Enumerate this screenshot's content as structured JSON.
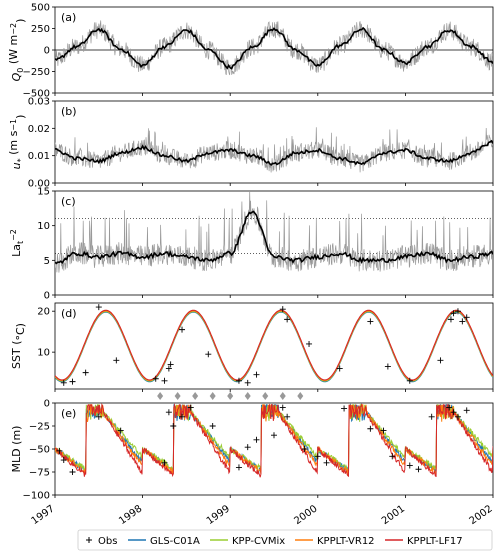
{
  "chart_data": [
    {
      "panel": "(a)",
      "type": "line",
      "ylabel": "Q0 (W m^-2)",
      "ylabel_parts": {
        "sym": "Q",
        "sub": "0",
        "unit": " (W m",
        "sup": "−2",
        "close": ")"
      },
      "ylim": [
        -500,
        500
      ],
      "yticks": [
        "−500",
        "−250",
        "0",
        "250",
        "500"
      ],
      "ytick_values": [
        -500,
        -250,
        0,
        250,
        500
      ],
      "reference_line": 0,
      "series": [
        {
          "name": "",
          "x_years": [
            1997.0,
            1997.25,
            1997.5,
            1997.75,
            1998.0,
            1998.25,
            1998.5,
            1998.75,
            1999.0,
            1999.25,
            1999.5,
            1999.75,
            2000.0,
            2000.25,
            2000.5,
            2000.75,
            2001.0,
            2001.25,
            2001.5,
            2001.75,
            2002.0
          ],
          "values": [
            -120,
            40,
            240,
            10,
            -180,
            40,
            230,
            0,
            -200,
            30,
            250,
            0,
            -180,
            50,
            240,
            0,
            -150,
            40,
            230,
            40,
            -140
          ]
        }
      ],
      "seasonal": {
        "mean": 20,
        "amp": 220,
        "phase_year": 0.5
      }
    },
    {
      "panel": "(b)",
      "type": "line",
      "ylabel": "u* (m s^-1)",
      "ylabel_parts": {
        "sym": "u",
        "sub": "*",
        "unit": " (m s",
        "sup": "−1",
        "close": ")"
      },
      "ylim": [
        0,
        0.03
      ],
      "yticks": [
        "0.00",
        "0.01",
        "0.02",
        "0.03"
      ],
      "ytick_values": [
        0,
        0.01,
        0.02,
        0.03
      ],
      "series": [
        {
          "name": "",
          "x_years": [
            1997.0,
            1997.25,
            1997.5,
            1997.75,
            1998.0,
            1998.25,
            1998.5,
            1998.75,
            1999.0,
            1999.25,
            1999.5,
            1999.75,
            2000.0,
            2000.25,
            2000.5,
            2000.75,
            2001.0,
            2001.25,
            2001.5,
            2001.75,
            2002.0
          ],
          "values": [
            0.012,
            0.009,
            0.008,
            0.011,
            0.013,
            0.01,
            0.008,
            0.011,
            0.012,
            0.01,
            0.007,
            0.011,
            0.012,
            0.009,
            0.007,
            0.011,
            0.012,
            0.009,
            0.008,
            0.011,
            0.015
          ]
        }
      ],
      "seasonal": {
        "mean": 0.0105,
        "amp": 0.0025,
        "phase_year": 0.0
      }
    },
    {
      "panel": "(c)",
      "type": "line",
      "ylabel": "La_t^-2",
      "ylabel_parts": {
        "sym": "La",
        "sub": "t",
        "unit": "",
        "sup": "−2",
        "close": ""
      },
      "ylim": [
        0,
        15
      ],
      "yticks": [
        "0",
        "5",
        "10",
        "15"
      ],
      "ytick_values": [
        0,
        5,
        10,
        15
      ],
      "reference_lines_dotted": [
        11.0,
        6.0
      ],
      "series": [
        {
          "name": "",
          "x_years": [
            1997.0,
            1997.25,
            1997.5,
            1997.75,
            1998.0,
            1998.25,
            1998.5,
            1998.75,
            1999.0,
            1999.25,
            1999.5,
            1999.75,
            2000.0,
            2000.25,
            2000.5,
            2000.75,
            2001.0,
            2001.25,
            2001.5,
            2001.75,
            2002.0
          ],
          "values": [
            4.5,
            6.0,
            5.5,
            6.0,
            5.5,
            6.0,
            5.5,
            5.0,
            6.0,
            12.0,
            5.5,
            5.0,
            5.5,
            6.0,
            5.0,
            5.0,
            5.5,
            6.0,
            5.0,
            5.5,
            6.0
          ]
        }
      ],
      "seasonal": {
        "mean": 5.6,
        "amp": 0.5,
        "phase_year": 0.3
      }
    },
    {
      "panel": "(d)",
      "type": "line",
      "ylabel": "SST (°C)",
      "ylabel_parts": {
        "sym": "SST (",
        "sub": "",
        "unit": "",
        "sup": "",
        "close": "°C)"
      },
      "ylim": [
        1,
        22
      ],
      "yticks": [
        "10",
        "20"
      ],
      "ytick_values": [
        10,
        20
      ],
      "obs_years": [
        1997.1,
        1997.2,
        1997.35,
        1997.5,
        1997.7,
        1998.15,
        1998.25,
        1998.3,
        1998.32,
        1998.45,
        1998.75,
        1999.1,
        1999.2,
        1999.3,
        1999.6,
        1999.65,
        1999.9,
        2000.25,
        2000.6,
        2000.8,
        2001.05,
        2001.4,
        2001.52,
        2001.55,
        2001.6,
        2001.65,
        2001.7
      ],
      "obs_values": [
        2.5,
        2.8,
        5.0,
        21.0,
        8.0,
        3.5,
        3.0,
        6.0,
        7.0,
        15.5,
        9.5,
        3.0,
        2.5,
        4.5,
        20.5,
        18.0,
        12.0,
        6.0,
        17.5,
        6.5,
        3.0,
        8.0,
        18.0,
        19.5,
        20.0,
        17.5,
        18.5
      ],
      "seasonal": {
        "mean": 11.5,
        "amp": 8.5,
        "phase_year": 0.58
      },
      "diamond_years": [
        1998.2,
        1998.4,
        1998.6,
        1998.8,
        1999.0,
        1999.2,
        1999.4,
        1999.6,
        1999.8
      ]
    },
    {
      "panel": "(e)",
      "type": "line",
      "ylabel": "MLD (m)",
      "ylabel_parts": {
        "sym": "MLD (m)",
        "sub": "",
        "unit": "",
        "sup": "",
        "close": ""
      },
      "ylim": [
        -100,
        0
      ],
      "yticks": [
        "−100",
        "−75",
        "−50",
        "−25",
        "0"
      ],
      "ytick_values": [
        -100,
        -75,
        -50,
        -25,
        0
      ],
      "obs_years": [
        1997.05,
        1997.1,
        1997.2,
        1997.5,
        1997.75,
        1998.25,
        1998.3,
        1998.35,
        1998.45,
        1998.55,
        1998.8,
        1999.1,
        1999.2,
        1999.3,
        1999.5,
        1999.6,
        1999.65,
        1999.85,
        2000.0,
        2000.1,
        2000.3,
        2000.6,
        2000.75,
        2000.85,
        2001.05,
        2001.15,
        2001.3,
        2001.5,
        2001.55,
        2001.6,
        2001.7
      ],
      "obs_values": [
        -52,
        -62,
        -75,
        -15,
        -30,
        -65,
        -10,
        -25,
        -15,
        -5,
        -25,
        -70,
        -48,
        -40,
        -35,
        -5,
        -15,
        -50,
        -58,
        -65,
        -6,
        -28,
        -30,
        -58,
        -68,
        -72,
        -15,
        -5,
        -10,
        -15,
        -8
      ],
      "series": [
        {
          "name": "GLS-C01A",
          "color": "#1f77b4"
        },
        {
          "name": "KPP-CVMix",
          "color": "#9acd32"
        },
        {
          "name": "KPPLT-VR12",
          "color": "#ff7f0e"
        },
        {
          "name": "KPPLT-LF17",
          "color": "#d62728"
        }
      ]
    }
  ],
  "x_axis": {
    "xlim": [
      1997,
      2002
    ],
    "tick_labels": [
      "1997",
      "1998",
      "1999",
      "2000",
      "2001",
      "2002"
    ],
    "tick_values": [
      1997,
      1998,
      1999,
      2000,
      2001,
      2002
    ]
  },
  "legend": {
    "obs_label": "Obs",
    "entries": [
      "GLS-C01A",
      "KPP-CVMix",
      "KPPLT-VR12",
      "KPPLT-LF17"
    ],
    "colors": [
      "#1f77b4",
      "#9acd32",
      "#ff7f0e",
      "#d62728"
    ]
  },
  "colors": {
    "raw": "#999999",
    "smooth": "#000000",
    "diamond": "#999999",
    "obs": "#000000"
  }
}
